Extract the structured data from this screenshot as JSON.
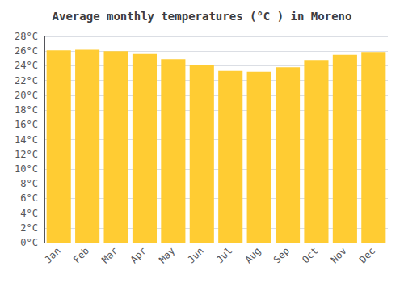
{
  "chart_data": {
    "type": "bar",
    "title": "Average monthly temperatures (°C ) in Moreno",
    "categories": [
      "Jan",
      "Feb",
      "Mar",
      "Apr",
      "May",
      "Jun",
      "Jul",
      "Aug",
      "Sep",
      "Oct",
      "Nov",
      "Dec"
    ],
    "values": [
      26.1,
      26.2,
      26.0,
      25.6,
      24.9,
      24.1,
      23.3,
      23.2,
      23.8,
      24.8,
      25.5,
      25.9
    ],
    "color": "#FFCC33",
    "ylim": [
      0,
      28
    ],
    "yticks": [
      {
        "value": 0,
        "label": "0°C"
      },
      {
        "value": 2,
        "label": "2°C"
      },
      {
        "value": 4,
        "label": "4°C"
      },
      {
        "value": 6,
        "label": "6°C"
      },
      {
        "value": 8,
        "label": "8°C"
      },
      {
        "value": 10,
        "label": "10°C"
      },
      {
        "value": 12,
        "label": "12°C"
      },
      {
        "value": 14,
        "label": "14°C"
      },
      {
        "value": 16,
        "label": "16°C"
      },
      {
        "value": 18,
        "label": "18°C"
      },
      {
        "value": 20,
        "label": "20°C"
      },
      {
        "value": 22,
        "label": "22°C"
      },
      {
        "value": 24,
        "label": "24°C"
      },
      {
        "value": 26,
        "label": "26°C"
      },
      {
        "value": 28,
        "label": "28°C"
      }
    ],
    "grid": true
  }
}
